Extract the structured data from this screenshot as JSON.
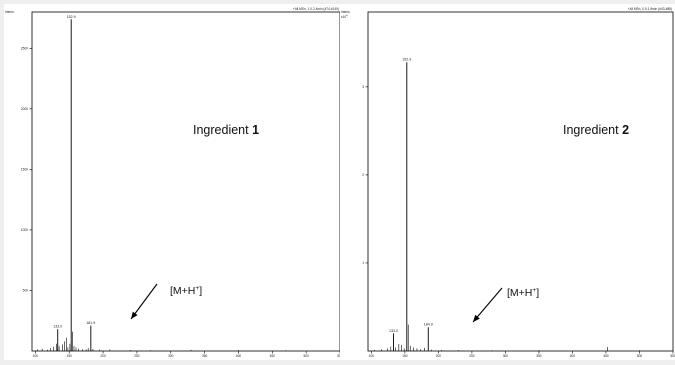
{
  "chart_data": [
    {
      "type": "bar",
      "y_axis_title": "Intens.",
      "y_axis_exponent": "",
      "header": "+All MSn, 1.0-2.4min (#74-#140)",
      "ylim": [
        0,
        2800
      ],
      "xlim": [
        95,
        550
      ],
      "yticks": [
        "500",
        "1000",
        "1500",
        "2000",
        "2500"
      ],
      "ytick_values": [
        500,
        1000,
        1500,
        2000,
        2500
      ],
      "xticks": [
        "100",
        "150",
        "200",
        "250",
        "300",
        "350",
        "400",
        "450",
        "500",
        "550"
      ],
      "xtick_values": [
        100,
        150,
        200,
        250,
        300,
        350,
        400,
        450,
        500,
        550
      ],
      "labeled_peaks": [
        {
          "x": 133.0,
          "y": 180,
          "label": "133.0"
        },
        {
          "x": 152.9,
          "y": 2740,
          "label": "152.9"
        },
        {
          "x": 181.9,
          "y": 210,
          "label": "181.9"
        }
      ],
      "minor_peaks": [
        {
          "x": 103,
          "y": 12
        },
        {
          "x": 110,
          "y": 18
        },
        {
          "x": 118,
          "y": 10
        },
        {
          "x": 122,
          "y": 25
        },
        {
          "x": 127,
          "y": 35
        },
        {
          "x": 131,
          "y": 60
        },
        {
          "x": 135,
          "y": 40
        },
        {
          "x": 140,
          "y": 55
        },
        {
          "x": 143,
          "y": 80
        },
        {
          "x": 146,
          "y": 110
        },
        {
          "x": 148,
          "y": 30
        },
        {
          "x": 151,
          "y": 60
        },
        {
          "x": 155,
          "y": 160
        },
        {
          "x": 157,
          "y": 40
        },
        {
          "x": 160,
          "y": 30
        },
        {
          "x": 164,
          "y": 20
        },
        {
          "x": 170,
          "y": 15
        },
        {
          "x": 175,
          "y": 12
        },
        {
          "x": 178,
          "y": 25
        },
        {
          "x": 185,
          "y": 18
        },
        {
          "x": 195,
          "y": 10
        },
        {
          "x": 210,
          "y": 12
        },
        {
          "x": 240,
          "y": 8
        },
        {
          "x": 270,
          "y": 6
        },
        {
          "x": 330,
          "y": 9
        },
        {
          "x": 400,
          "y": 7
        },
        {
          "x": 470,
          "y": 6
        }
      ],
      "annotation": {
        "text": "Ingredient ",
        "bold": "1"
      },
      "arrow_label": {
        "prefix": "[M+H",
        "sup": "+",
        "suffix": "]"
      }
    },
    {
      "type": "bar",
      "y_axis_title": "Intens.",
      "y_axis_exponent": "x10",
      "y_axis_exponent_power": "4",
      "header": "+All MSn, 0.9-1.9min (#43-#88)",
      "ylim": [
        0,
        38500
      ],
      "xlim": [
        95,
        550
      ],
      "yticks": [
        "1",
        "2",
        "3"
      ],
      "ytick_values": [
        10000,
        20000,
        30000
      ],
      "xticks": [
        "100",
        "150",
        "200",
        "250",
        "300",
        "350",
        "400",
        "450",
        "500",
        "550"
      ],
      "xtick_values": [
        100,
        150,
        200,
        250,
        300,
        350,
        400,
        450,
        500,
        550
      ],
      "labeled_peaks": [
        {
          "x": 133.0,
          "y": 2000,
          "label": "133.0"
        },
        {
          "x": 152.9,
          "y": 32800,
          "label": "152.9"
        },
        {
          "x": 184.9,
          "y": 2700,
          "label": "184.9"
        }
      ],
      "minor_peaks": [
        {
          "x": 105,
          "y": 120
        },
        {
          "x": 115,
          "y": 200
        },
        {
          "x": 124,
          "y": 300
        },
        {
          "x": 129,
          "y": 500
        },
        {
          "x": 136,
          "y": 400
        },
        {
          "x": 141,
          "y": 800
        },
        {
          "x": 145,
          "y": 700
        },
        {
          "x": 149,
          "y": 300
        },
        {
          "x": 155,
          "y": 3000
        },
        {
          "x": 158,
          "y": 600
        },
        {
          "x": 163,
          "y": 400
        },
        {
          "x": 168,
          "y": 300
        },
        {
          "x": 173,
          "y": 200
        },
        {
          "x": 179,
          "y": 350
        },
        {
          "x": 190,
          "y": 150
        },
        {
          "x": 205,
          "y": 120
        },
        {
          "x": 230,
          "y": 100
        },
        {
          "x": 280,
          "y": 80
        },
        {
          "x": 350,
          "y": 90
        },
        {
          "x": 452,
          "y": 450
        },
        {
          "x": 500,
          "y": 70
        }
      ],
      "annotation": {
        "text": "Ingredient ",
        "bold": "2"
      },
      "arrow_label": {
        "prefix": "[M+H",
        "sup": "+",
        "suffix": "]"
      }
    }
  ]
}
